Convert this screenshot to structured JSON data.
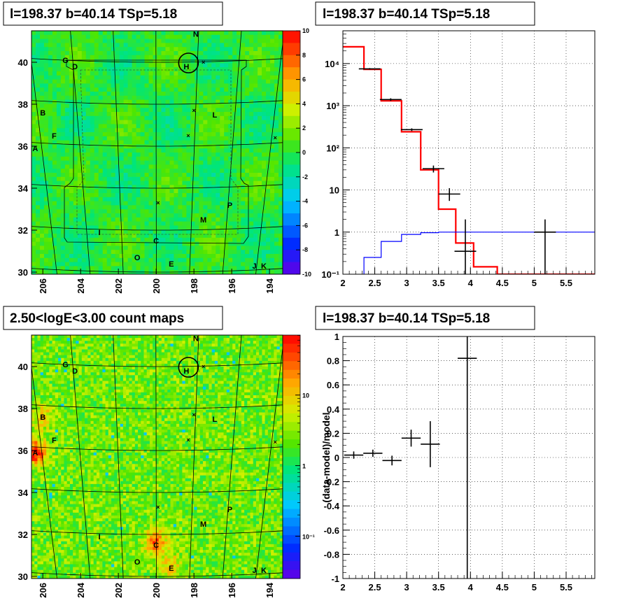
{
  "chart_data": [
    {
      "type": "heatmap",
      "title": "l=198.37 b=40.14 TSp=5.18",
      "x_ticks": [
        "206",
        "204",
        "202",
        "200",
        "198",
        "196",
        "194"
      ],
      "y_ticks": [
        "30",
        "32",
        "34",
        "36",
        "38",
        "40"
      ],
      "xlim": [
        206.6,
        193.3
      ],
      "ylim": [
        29.9,
        41.5
      ],
      "colorbar": {
        "min": -10,
        "max": 10,
        "ticks": [
          "10",
          "8",
          "6",
          "4",
          "2",
          "0",
          "-2",
          "-4",
          "-6",
          "-8",
          "-10"
        ]
      },
      "sources": [
        {
          "label": "N",
          "x": 197.9,
          "y": 41.35
        },
        {
          "label": "G",
          "x": 204.8,
          "y": 40.1
        },
        {
          "label": "D",
          "x": 204.3,
          "y": 39.8
        },
        {
          "label": "H",
          "x": 198.4,
          "y": 39.8
        },
        {
          "label": "B",
          "x": 206.0,
          "y": 37.6
        },
        {
          "label": "L",
          "x": 196.9,
          "y": 37.5
        },
        {
          "label": "F",
          "x": 205.4,
          "y": 36.5
        },
        {
          "label": "A",
          "x": 206.4,
          "y": 35.9
        },
        {
          "label": "P",
          "x": 196.1,
          "y": 33.2
        },
        {
          "label": "M",
          "x": 197.5,
          "y": 32.5
        },
        {
          "label": "I",
          "x": 203.0,
          "y": 31.9
        },
        {
          "label": "C",
          "x": 200.0,
          "y": 31.5
        },
        {
          "label": "O",
          "x": 201.0,
          "y": 30.7
        },
        {
          "label": "E",
          "x": 199.2,
          "y": 30.4
        },
        {
          "label": "J",
          "x": 194.8,
          "y": 30.3
        },
        {
          "label": "K",
          "x": 194.3,
          "y": 30.3
        }
      ],
      "target_circle": {
        "x": 198.4,
        "y": 39.9
      }
    },
    {
      "type": "line",
      "title": "l=198.37 b=40.14 TSp=5.18",
      "x_ticks": [
        "2",
        "2.5",
        "3",
        "3.5",
        "4",
        "4.5",
        "5",
        "5.5"
      ],
      "y_ticks": [
        "10⁻¹",
        "1",
        "10",
        "10²",
        "10³",
        "10⁴"
      ],
      "xlim": [
        2,
        5.95
      ],
      "ylim": [
        0.1,
        60000
      ],
      "yscale": "log",
      "data_points": {
        "x": [
          2.42,
          2.75,
          3.08,
          3.42,
          3.67,
          3.92,
          5.17
        ],
        "y": [
          7500,
          1400,
          270,
          32,
          8,
          0.35,
          1.0
        ],
        "ylo": [
          7200,
          1300,
          250,
          26,
          5.5,
          0.1,
          0.1
        ],
        "yhi": [
          7800,
          1500,
          290,
          38,
          11,
          2.0,
          2.0
        ],
        "xerr": 0.17
      },
      "series": [
        {
          "color": "#ff0000",
          "edges": [
            2.0,
            2.33,
            2.6,
            2.92,
            3.22,
            3.5,
            3.77,
            4.05,
            4.42,
            5.95
          ],
          "values": [
            25000,
            7300,
            1300,
            240,
            30,
            3.5,
            0.55,
            0.15,
            0.1
          ]
        },
        {
          "color": "#0000ff",
          "edges": [
            2.33,
            2.6,
            2.92,
            3.22,
            3.5,
            3.77,
            4.05,
            5.95
          ],
          "values": [
            0.25,
            0.6,
            0.88,
            0.97,
            1.0,
            1.0,
            1.0
          ]
        }
      ]
    },
    {
      "type": "heatmap",
      "title": "2.50<logE<3.00 count maps",
      "x_ticks": [
        "206",
        "204",
        "202",
        "200",
        "198",
        "196",
        "194"
      ],
      "y_ticks": [
        "30",
        "32",
        "34",
        "36",
        "38",
        "40"
      ],
      "xlim": [
        206.6,
        193.3
      ],
      "ylim": [
        29.9,
        41.5
      ],
      "colorbar": {
        "scale": "log",
        "ticks": [
          "10",
          "1",
          "10⁻¹"
        ]
      },
      "hot_spots": [
        {
          "x": 206.4,
          "y": 35.9,
          "strength": 1.0
        },
        {
          "x": 200.0,
          "y": 31.6,
          "strength": 0.75
        },
        {
          "x": 199.2,
          "y": 30.5,
          "strength": 0.4
        },
        {
          "x": 206.0,
          "y": 37.6,
          "strength": 0.4
        }
      ]
    },
    {
      "type": "line",
      "title": "l=198.37 b=40.14 TSp=5.18",
      "ylabel": "(data-model)/model",
      "x_ticks": [
        "2",
        "2.5",
        "3",
        "3.5",
        "4",
        "4.5",
        "5",
        "5.5"
      ],
      "y_ticks": [
        "-1",
        "-0.8",
        "-0.6",
        "-0.4",
        "-0.2",
        "0",
        "0.2",
        "0.4",
        "0.6",
        "0.8",
        "1"
      ],
      "xlim": [
        2,
        5.95
      ],
      "ylim": [
        -1,
        1
      ],
      "data_points": {
        "x": [
          2.17,
          2.47,
          2.77,
          3.07,
          3.37,
          3.95
        ],
        "y": [
          0.02,
          0.035,
          -0.025,
          0.16,
          0.11,
          0.82
        ],
        "yerr": [
          0.03,
          0.03,
          0.04,
          0.07,
          0.19,
          1.9
        ],
        "xerr": 0.15
      }
    }
  ]
}
